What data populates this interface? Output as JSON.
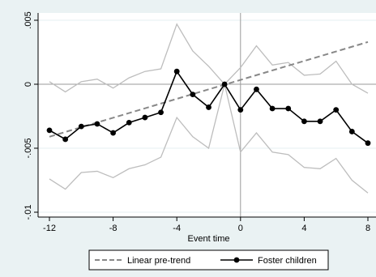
{
  "chart_data": {
    "type": "line",
    "xlabel": "Event time",
    "ylabel": "",
    "title": "",
    "xlim": [
      -12,
      8
    ],
    "ylim": [
      -0.0105,
      0.005
    ],
    "x_ticks": [
      -12,
      -8,
      -4,
      0,
      4,
      8
    ],
    "x_tick_labels": [
      "-12",
      "-8",
      "-4",
      "0",
      "4",
      "8"
    ],
    "y_ticks": [
      -0.01,
      -0.005,
      0,
      0.005
    ],
    "y_tick_labels": [
      "-.01",
      "-.005",
      "0",
      ".005"
    ],
    "grid": true,
    "reference_lines": {
      "x": 0,
      "y": 0
    },
    "legend_position": "bottom",
    "x": [
      -12,
      -11,
      -10,
      -9,
      -8,
      -7,
      -6,
      -5,
      -4,
      -3,
      -2,
      -1,
      0,
      1,
      2,
      3,
      4,
      5,
      6,
      7,
      8
    ],
    "series": [
      {
        "name": "Linear pre-trend",
        "style": "dashed",
        "color": "#888888",
        "x": [
          -12,
          8
        ],
        "values": [
          -0.0041,
          0.0033
        ]
      },
      {
        "name": "Foster children",
        "style": "solid-markers",
        "color": "#000000",
        "values": [
          -0.0036,
          -0.0043,
          -0.0033,
          -0.0031,
          -0.0038,
          -0.003,
          -0.0026,
          -0.0022,
          0.001,
          -0.0008,
          -0.0018,
          0.0,
          -0.002,
          -0.0004,
          -0.0019,
          -0.0019,
          -0.0029,
          -0.0029,
          -0.002,
          -0.0037,
          -0.0046
        ]
      },
      {
        "name": "Upper CI",
        "style": "thin",
        "color": "#bdbdbd",
        "values": [
          0.0002,
          -0.0006,
          0.0002,
          0.0004,
          -0.0003,
          0.0005,
          0.001,
          0.0012,
          0.0047,
          0.0026,
          0.0014,
          0.0,
          0.0013,
          0.003,
          0.0015,
          0.0017,
          0.0007,
          0.0008,
          0.0018,
          0.0,
          -0.0007
        ]
      },
      {
        "name": "Lower CI",
        "style": "thin",
        "color": "#bdbdbd",
        "values": [
          -0.0074,
          -0.0082,
          -0.0069,
          -0.0068,
          -0.0073,
          -0.0066,
          -0.0063,
          -0.0057,
          -0.0026,
          -0.0041,
          -0.005,
          0.0,
          -0.0053,
          -0.0038,
          -0.0053,
          -0.0055,
          -0.0065,
          -0.0066,
          -0.0058,
          -0.0075,
          -0.0085
        ]
      }
    ],
    "legend": [
      {
        "label": "Linear pre-trend",
        "series": 0
      },
      {
        "label": "Foster children",
        "series": 1
      }
    ]
  }
}
